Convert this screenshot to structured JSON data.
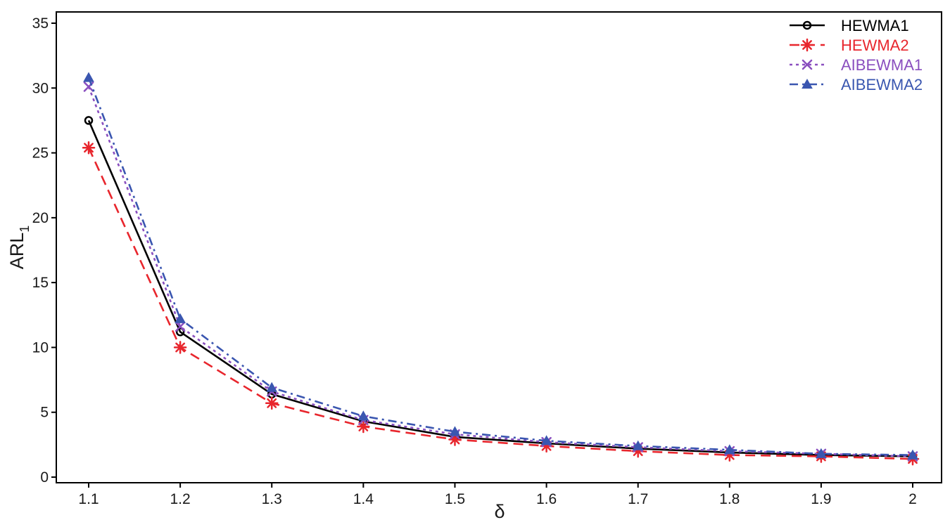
{
  "chart_data": {
    "type": "line",
    "xlabel": "δ",
    "ylabel_main": "ARL",
    "ylabel_sub": "1",
    "x": [
      1.1,
      1.2,
      1.3,
      1.4,
      1.5,
      1.6,
      1.7,
      1.8,
      1.9,
      2.0
    ],
    "x_tick_labels": [
      "1.1",
      "1.2",
      "1.3",
      "1.4",
      "1.5",
      "1.6",
      "1.7",
      "1.8",
      "1.9",
      "2"
    ],
    "y_ticks": [
      0,
      5,
      10,
      15,
      20,
      25,
      30,
      35
    ],
    "y_tick_labels": [
      "0",
      "5",
      "10",
      "15",
      "20",
      "25",
      "30",
      "35"
    ],
    "xlim": [
      1.1,
      2.0
    ],
    "ylim": [
      0,
      35
    ],
    "grid": false,
    "legend_position": "top-right",
    "series": [
      {
        "name": "HEWMA1",
        "color": "#000000",
        "marker": "circle",
        "line_style": "solid",
        "values": [
          27.5,
          11.2,
          6.4,
          4.3,
          3.1,
          2.6,
          2.2,
          1.9,
          1.7,
          1.6
        ]
      },
      {
        "name": "HEWMA2",
        "color": "#e8262d",
        "marker": "asterisk",
        "line_style": "dashed",
        "values": [
          25.4,
          10.0,
          5.7,
          3.9,
          2.9,
          2.4,
          2.0,
          1.7,
          1.6,
          1.4
        ]
      },
      {
        "name": "AIBEWMA1",
        "color": "#8a4fbf",
        "marker": "cross",
        "line_style": "dotted",
        "values": [
          30.1,
          11.6,
          6.6,
          4.4,
          3.3,
          2.7,
          2.3,
          2.0,
          1.8,
          1.6
        ]
      },
      {
        "name": "AIBEWMA2",
        "color": "#3a56b0",
        "marker": "triangle",
        "line_style": "dashdot",
        "values": [
          30.8,
          12.2,
          6.9,
          4.7,
          3.5,
          2.8,
          2.4,
          2.1,
          1.8,
          1.7
        ]
      }
    ]
  }
}
